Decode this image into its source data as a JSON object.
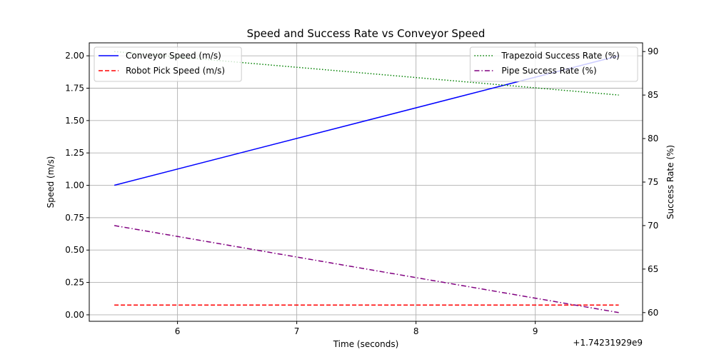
{
  "chart_data": {
    "type": "line",
    "title": "Speed and Success Rate vs Conveyor Speed",
    "xlabel": "Time (seconds)",
    "x_offset_label": "+1.74231929e9",
    "ylabel_left": "Speed (m/s)",
    "ylabel_right": "Success Rate (%)",
    "x_ticks": [
      6,
      7,
      8,
      9
    ],
    "x_tick_labels": [
      "6",
      "7",
      "8",
      "9"
    ],
    "y_left_ticks": [
      0.0,
      0.25,
      0.5,
      0.75,
      1.0,
      1.25,
      1.5,
      1.75,
      2.0
    ],
    "y_left_tick_labels": [
      "0.00",
      "0.25",
      "0.50",
      "0.75",
      "1.00",
      "1.25",
      "1.50",
      "1.75",
      "2.00"
    ],
    "y_right_ticks": [
      60,
      65,
      70,
      75,
      80,
      85,
      90
    ],
    "y_right_tick_labels": [
      "60",
      "65",
      "70",
      "75",
      "80",
      "85",
      "90"
    ],
    "xlim": [
      5.26,
      9.9
    ],
    "ylim_left": [
      -0.05,
      2.1
    ],
    "ylim_right": [
      59.0,
      91.0
    ],
    "grid": true,
    "legend_left_placement": "upper-left",
    "legend_right_placement": "upper-right",
    "series": [
      {
        "name": "Conveyor Speed (m/s)",
        "axis": "left",
        "color": "#0000ff",
        "dash": "solid",
        "x": [
          5.47,
          9.7
        ],
        "y": [
          1.0,
          2.0
        ]
      },
      {
        "name": "Robot Pick Speed (m/s)",
        "axis": "left",
        "color": "#ff0000",
        "dash": "dashed",
        "x": [
          5.47,
          9.7
        ],
        "y": [
          0.075,
          0.075
        ]
      },
      {
        "name": "Trapezoid Success Rate (%)",
        "axis": "right",
        "color": "#008000",
        "dash": "dotted",
        "x": [
          5.47,
          9.7
        ],
        "y": [
          90.0,
          85.0
        ]
      },
      {
        "name": "Pipe Success Rate (%)",
        "axis": "right",
        "color": "#800080",
        "dash": "dashdot",
        "x": [
          5.47,
          9.7
        ],
        "y": [
          70.0,
          60.0
        ]
      }
    ]
  }
}
